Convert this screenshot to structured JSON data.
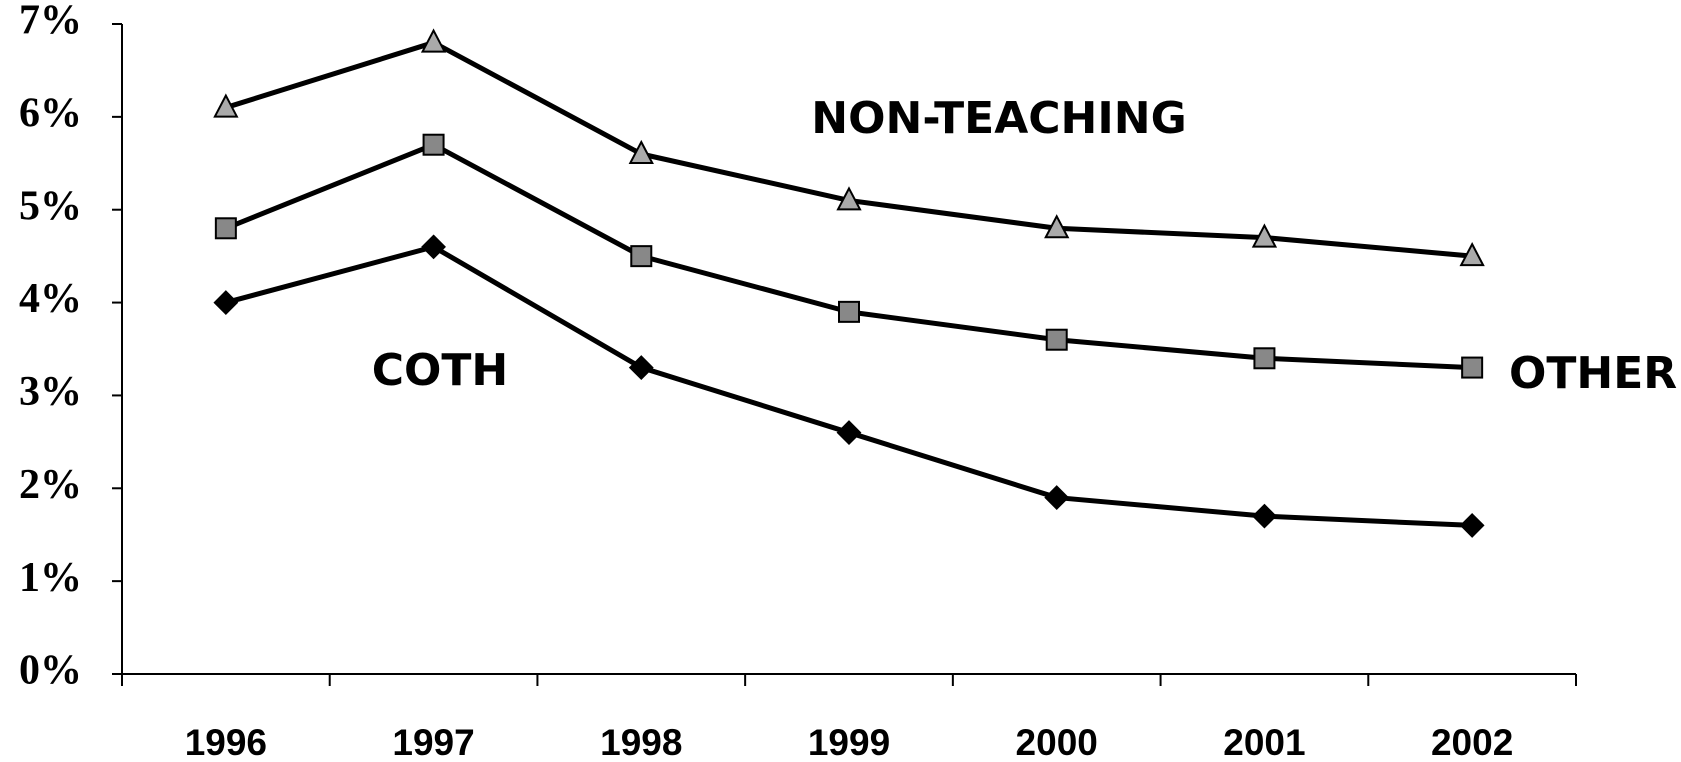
{
  "chart_data": {
    "type": "line",
    "categories": [
      "1996",
      "1997",
      "1998",
      "1999",
      "2000",
      "2001",
      "2002"
    ],
    "series": [
      {
        "name": "NON-TEACHING",
        "color": "#aaaaaa",
        "marker": "triangle",
        "values": [
          6.1,
          6.8,
          5.6,
          5.1,
          4.8,
          4.7,
          4.5
        ]
      },
      {
        "name": "OTHER",
        "color": "#888888",
        "marker": "square",
        "values": [
          4.8,
          5.7,
          4.5,
          3.9,
          3.6,
          3.4,
          3.3
        ]
      },
      {
        "name": "COTH",
        "color": "#000000",
        "marker": "diamond",
        "values": [
          4.0,
          4.6,
          3.3,
          2.6,
          1.9,
          1.7,
          1.6
        ]
      }
    ],
    "ylim": [
      0,
      7
    ],
    "yticks": [
      {
        "value": 0,
        "label": "0%"
      },
      {
        "value": 1,
        "label": "1%"
      },
      {
        "value": 2,
        "label": "2%"
      },
      {
        "value": 3,
        "label": "3%"
      },
      {
        "value": 4,
        "label": "4%"
      },
      {
        "value": 5,
        "label": "5%"
      },
      {
        "value": 6,
        "label": "6%"
      },
      {
        "value": 7,
        "label": "7%"
      }
    ],
    "grid": false
  }
}
